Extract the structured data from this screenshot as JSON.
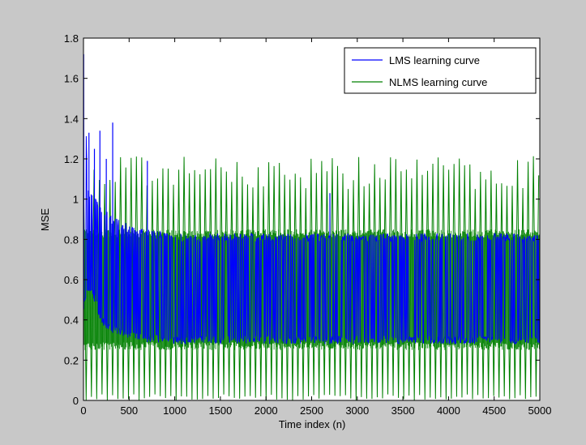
{
  "chart_data": {
    "type": "line",
    "title": "",
    "xlabel": "Time index (n)",
    "ylabel": "MSE",
    "xlim": [
      0,
      5000
    ],
    "ylim": [
      0,
      1.8
    ],
    "x_ticks": [
      0,
      500,
      1000,
      1500,
      2000,
      2500,
      3000,
      3500,
      4000,
      4500,
      5000
    ],
    "y_ticks": [
      0,
      0.2,
      0.4,
      0.6,
      0.8,
      1,
      1.2,
      1.4,
      1.6,
      1.8
    ],
    "grid": false,
    "legend_position": "top-right",
    "background": "#c8c8c8",
    "plot_background": "#ffffff",
    "series": [
      {
        "name": "LMS learning curve",
        "color": "#0000ff",
        "envelope": {
          "x": [
            0,
            50,
            100,
            150,
            200,
            300,
            400,
            500,
            700,
            1000,
            1500,
            2000,
            2500,
            3000,
            3500,
            4000,
            4500,
            5000
          ],
          "upper": [
            1.72,
            1.05,
            1.02,
            1.0,
            0.96,
            0.92,
            0.9,
            0.87,
            0.85,
            0.83,
            0.83,
            0.83,
            0.83,
            0.83,
            0.83,
            0.83,
            0.83,
            0.83
          ],
          "lower": [
            0.45,
            0.55,
            0.52,
            0.45,
            0.38,
            0.34,
            0.32,
            0.3,
            0.29,
            0.28,
            0.28,
            0.28,
            0.28,
            0.28,
            0.28,
            0.28,
            0.28,
            0.28
          ]
        },
        "spikes": [
          {
            "x": 2,
            "y": 1.72
          },
          {
            "x": 60,
            "y": 1.33
          },
          {
            "x": 120,
            "y": 1.25
          },
          {
            "x": 180,
            "y": 1.34
          },
          {
            "x": 250,
            "y": 1.2
          },
          {
            "x": 320,
            "y": 1.38
          },
          {
            "x": 700,
            "y": 1.19
          },
          {
            "x": 2700,
            "y": 1.03
          }
        ]
      },
      {
        "name": "NLMS learning curve",
        "color": "#008000",
        "oscillation_period": 58,
        "upper_range": [
          1.05,
          1.22
        ],
        "lower_min": 0.0,
        "band": [
          0.25,
          0.85
        ]
      }
    ]
  }
}
